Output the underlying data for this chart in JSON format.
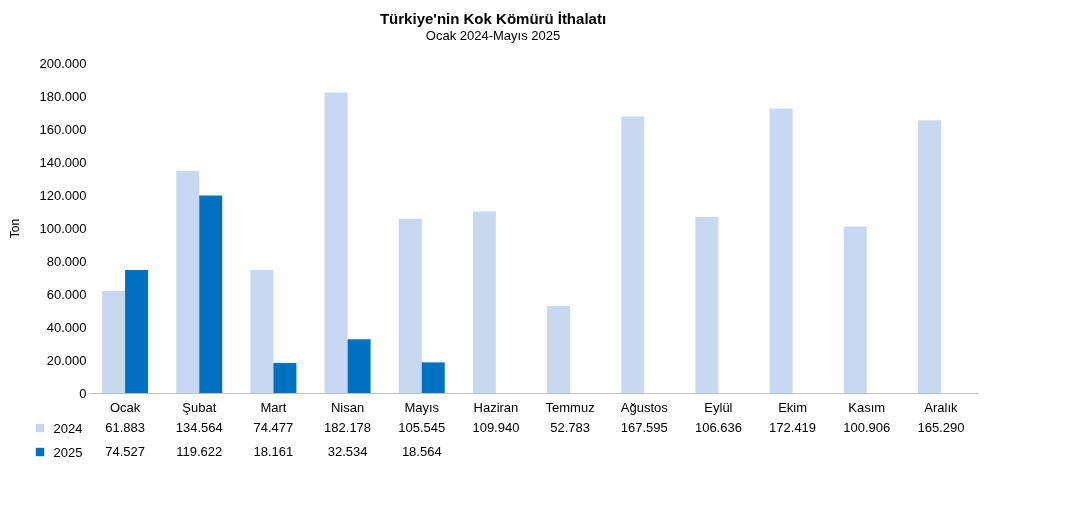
{
  "chart_data": {
    "type": "bar",
    "title": "Türkiye'nin  Kok Kömürü  İthalatı",
    "subtitle": "Ocak 2024-Mayıs 2025",
    "ylabel": "Ton",
    "categories": [
      "Ocak",
      "Şubat",
      "Mart",
      "Nisan",
      "Mayıs",
      "Haziran",
      "Temmuz",
      "Ağustos",
      "Eylül",
      "Ekim",
      "Kasım",
      "Aralık"
    ],
    "series": [
      {
        "name": "2024",
        "color": "#c6d9f1",
        "values": [
          61883,
          134564,
          74477,
          182178,
          105545,
          109940,
          52783,
          167595,
          106636,
          172419,
          100906,
          165290
        ],
        "value_labels": [
          "61.883",
          "134.564",
          "74.477",
          "182.178",
          "105.545",
          "109.940",
          "52.783",
          "167.595",
          "106.636",
          "172.419",
          "100.906",
          "165.290"
        ]
      },
      {
        "name": "2025",
        "color": "#0070c0",
        "values": [
          74527,
          119622,
          18161,
          32534,
          18564,
          null,
          null,
          null,
          null,
          null,
          null,
          null
        ],
        "value_labels": [
          "74.527",
          "119.622",
          "18.161",
          "32.534",
          "18.564",
          null,
          null,
          null,
          null,
          null,
          null,
          null
        ]
      }
    ],
    "ylim": [
      0,
      200000
    ],
    "yticks": [
      {
        "value": 0,
        "label": "0"
      },
      {
        "value": 20000,
        "label": "20.000"
      },
      {
        "value": 40000,
        "label": "40.000"
      },
      {
        "value": 60000,
        "label": "60.000"
      },
      {
        "value": 80000,
        "label": "80.000"
      },
      {
        "value": 100000,
        "label": "100.000"
      },
      {
        "value": 120000,
        "label": "120.000"
      },
      {
        "value": 140000,
        "label": "140.000"
      },
      {
        "value": 160000,
        "label": "160.000"
      },
      {
        "value": 180000,
        "label": "180.000"
      },
      {
        "value": 200000,
        "label": "200.000"
      }
    ],
    "legend": "bottom left",
    "grid": false
  }
}
